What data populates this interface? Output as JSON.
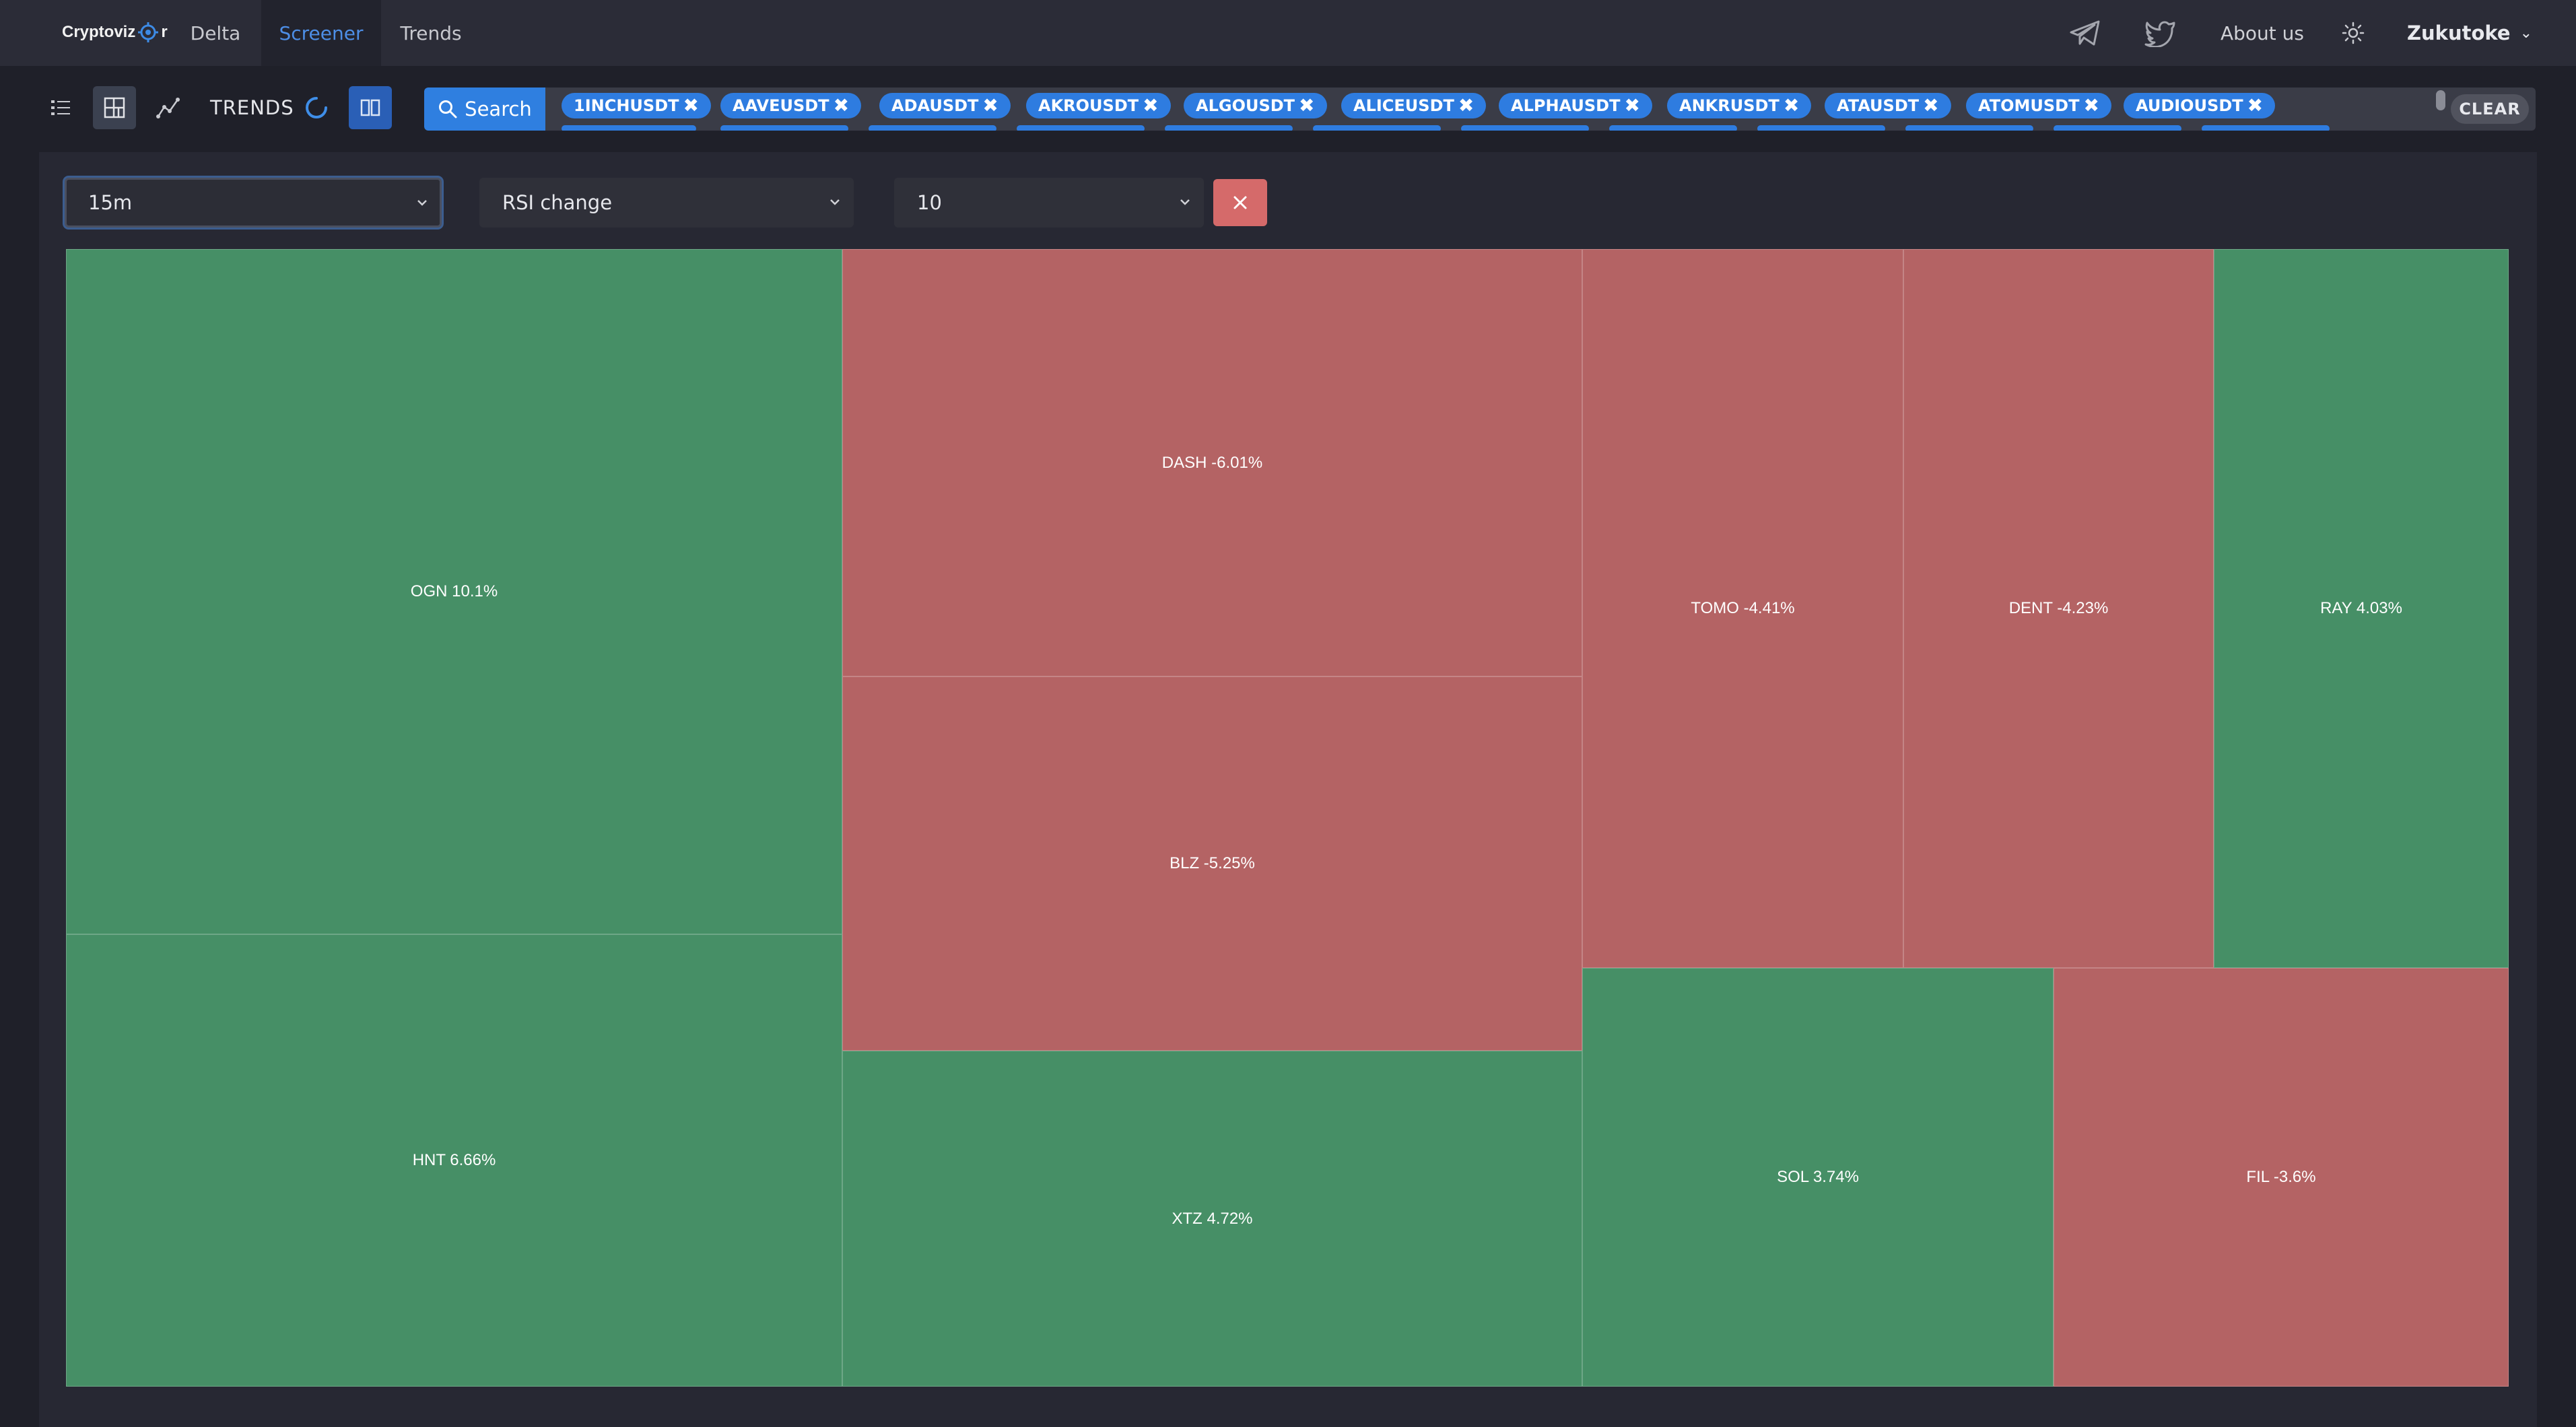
{
  "brand": {
    "logo_text_a": "Cryptoviz",
    "logo_text_b": "r"
  },
  "nav": {
    "items": [
      "Delta",
      "Screener",
      "Trends"
    ],
    "active": "Screener"
  },
  "header": {
    "about_label": "About us",
    "user_name": "Zukutoke"
  },
  "toolbar": {
    "trends_label": "TRENDS"
  },
  "search": {
    "button_label": "Search",
    "tags": [
      "1INCHUSDT",
      "AAVEUSDT",
      "ADAUSDT",
      "AKROUSDT",
      "ALGOUSDT",
      "ALICEUSDT",
      "ALPHAUSDT",
      "ANKRUSDT",
      "ATAUSDT",
      "ATOMUSDT",
      "AUDIOUSDT"
    ],
    "clear_label": "CLEAR"
  },
  "filters": {
    "timeframe": "15m",
    "metric": "RSI change",
    "count": "10"
  },
  "colors": {
    "positive": "#468f66",
    "negative": "#b46364",
    "accent": "#2f7fe0"
  },
  "treemap": {
    "cells": [
      {
        "label": "OGN 10.1%",
        "trend": "up"
      },
      {
        "label": "HNT 6.66%",
        "trend": "up"
      },
      {
        "label": "DASH -6.01%",
        "trend": "down"
      },
      {
        "label": "BLZ -5.25%",
        "trend": "down"
      },
      {
        "label": "XTZ 4.72%",
        "trend": "up"
      },
      {
        "label": "TOMO -4.41%",
        "trend": "down"
      },
      {
        "label": "DENT -4.23%",
        "trend": "down"
      },
      {
        "label": "RAY 4.03%",
        "trend": "up"
      },
      {
        "label": "SOL 3.74%",
        "trend": "up"
      },
      {
        "label": "FIL -3.6%",
        "trend": "down"
      }
    ]
  }
}
